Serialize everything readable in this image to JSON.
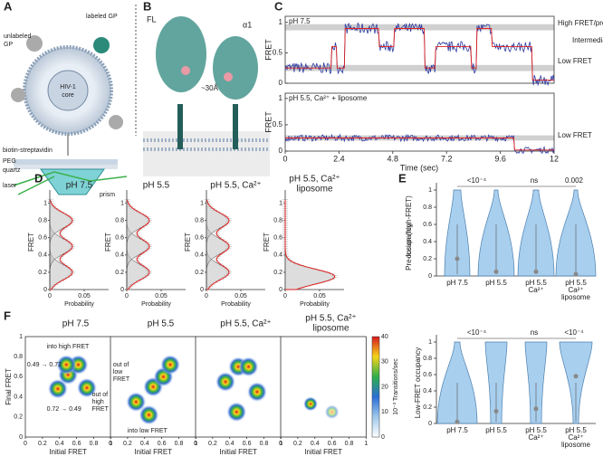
{
  "A": {
    "letter": "A",
    "unlabeled_gp": [
      "unlabeled",
      "GP"
    ],
    "labeled_gp": "labeled GP",
    "core": [
      "HIV-1",
      "core"
    ],
    "biotin": "biotin-streptavidin",
    "peg": "PEG",
    "quartz": "quartz",
    "laser": "laser",
    "prism": "prism"
  },
  "B": {
    "letter": "B",
    "fl": "FL",
    "alpha1": "α1",
    "distance": "~30Å"
  },
  "C": {
    "letter": "C",
    "top_title": "pH 7.5",
    "bottom_title": "pH 5.5, Ca²⁺ + liposome",
    "y_label": "FRET",
    "yticks": [
      "0",
      "0.5",
      "1"
    ],
    "xticks": [
      "0",
      "2.4",
      "4.8",
      "7.2",
      "9.6",
      "12"
    ],
    "x_label": "Time (sec)",
    "states": [
      "High FRET/pre-fusion",
      "Intermediate FRET",
      "Low FRET"
    ],
    "bottom_state": "Low FRET"
  },
  "D": {
    "letter": "D",
    "titles": [
      [
        "pH 7.5"
      ],
      [
        "pH 5.5"
      ],
      [
        "pH 5.5, Ca²⁺"
      ],
      [
        "pH 5.5, Ca²⁺",
        "liposome"
      ]
    ],
    "y_label": "FRET",
    "yticks": [
      "0",
      "0.2",
      "0.4",
      "0.6",
      "0.8",
      "1"
    ],
    "xticks": [
      "0",
      "0.05"
    ],
    "x_label": "Probability"
  },
  "E": {
    "letter": "E",
    "top": {
      "y_label": [
        "Pre-fusion (high-FRET)",
        "occupancy"
      ],
      "yticks": [
        "0",
        "0.2",
        "0.4",
        "0.6",
        "0.8",
        "1"
      ],
      "pvalues": [
        "<10⁻⁴",
        "ns",
        "0.002"
      ]
    },
    "bottom": {
      "y_label": [
        "Low-FRET occupancy"
      ],
      "yticks": [
        "0",
        "0.2",
        "0.4",
        "0.6",
        "0.8",
        "1"
      ],
      "pvalues": [
        "<10⁻⁴",
        "ns",
        "<10⁻⁴"
      ]
    },
    "categories": [
      [
        "pH 7.5"
      ],
      [
        "pH 5.5"
      ],
      [
        "pH 5.5",
        "Ca²⁺"
      ],
      [
        "pH 5.5",
        "Ca²⁺",
        "liposome"
      ]
    ]
  },
  "F": {
    "letter": "F",
    "titles": [
      [
        "pH 7.5"
      ],
      [
        "pH 5.5"
      ],
      [
        "pH 5.5, Ca²⁺"
      ],
      [
        "pH 5.5, Ca²⁺",
        "liposome"
      ]
    ],
    "y_label": "Final FRET",
    "x_label": "Initial FRET",
    "ticks": [
      "0",
      "0.2",
      "0.4",
      "0.6",
      "0.8",
      "1"
    ],
    "into_high": "into high FRET",
    "forward": "0.49 → 0.72",
    "out_high": [
      "out of",
      "high",
      "FRET"
    ],
    "backward": "0.72 → 0.49",
    "out_low": [
      "out of",
      "low",
      "FRET"
    ],
    "into_low": "into low FRET",
    "colorbar_ticks": [
      "0",
      "10",
      "20",
      "30",
      "40"
    ],
    "colorbar_label": "10⁻³ Transitions/sec"
  }
}
